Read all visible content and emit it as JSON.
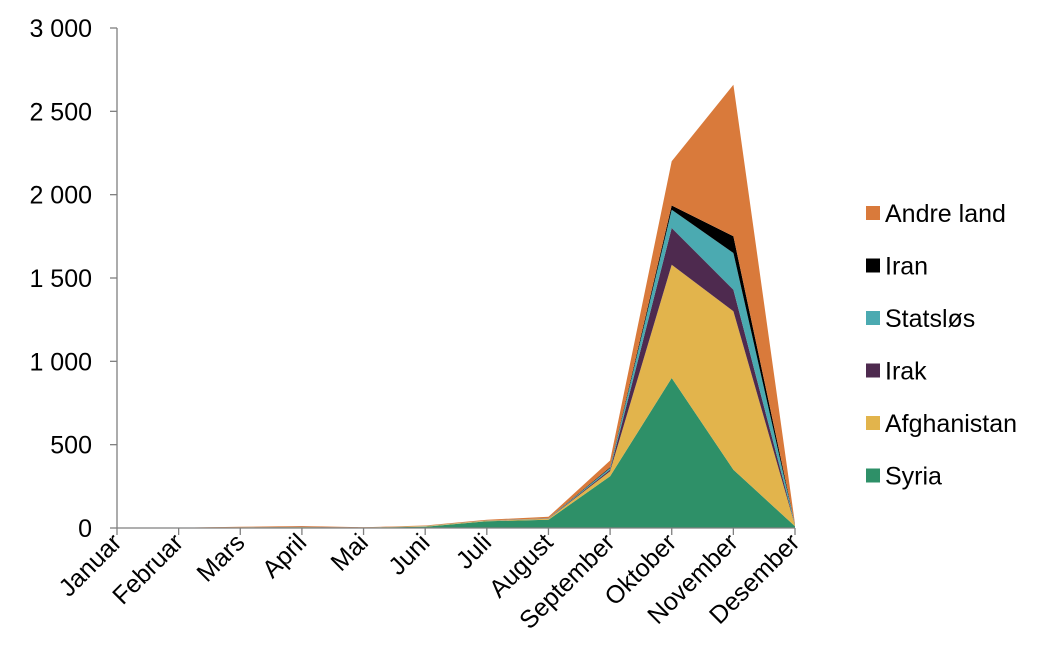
{
  "chart_data": {
    "type": "area",
    "stacked": true,
    "categories": [
      "Januar",
      "Februar",
      "Mars",
      "April",
      "Mai",
      "Juni",
      "Juli",
      "August",
      "September",
      "Oktober",
      "November",
      "Desember"
    ],
    "ylim": [
      0,
      3000
    ],
    "yticks": [
      0,
      500,
      1000,
      1500,
      2000,
      2500,
      3000
    ],
    "ytick_labels": [
      "0",
      "500",
      "1 000",
      "1 500",
      "2 000",
      "2 500",
      "3 000"
    ],
    "grid": false,
    "legend_position": "right",
    "series": [
      {
        "name": "Syria",
        "color": "#2e9068",
        "values": [
          0,
          1,
          3,
          5,
          2,
          8,
          40,
          50,
          310,
          900,
          350,
          10
        ]
      },
      {
        "name": "Afghanistan",
        "color": "#e2b44c",
        "values": [
          0,
          0,
          1,
          1,
          1,
          2,
          3,
          5,
          30,
          680,
          950,
          5
        ]
      },
      {
        "name": "Irak",
        "color": "#4e2a4f",
        "values": [
          0,
          0,
          0,
          1,
          0,
          1,
          1,
          2,
          10,
          220,
          130,
          2
        ]
      },
      {
        "name": "Statsløs",
        "color": "#4baab1",
        "values": [
          0,
          0,
          0,
          0,
          0,
          1,
          1,
          1,
          10,
          110,
          220,
          2
        ]
      },
      {
        "name": "Iran",
        "color": "#000000",
        "values": [
          0,
          0,
          0,
          0,
          0,
          0,
          0,
          1,
          5,
          25,
          100,
          1
        ]
      },
      {
        "name": "Andre land",
        "color": "#d97a3b",
        "values": [
          0,
          1,
          3,
          5,
          2,
          3,
          5,
          8,
          40,
          265,
          910,
          5
        ]
      }
    ]
  }
}
